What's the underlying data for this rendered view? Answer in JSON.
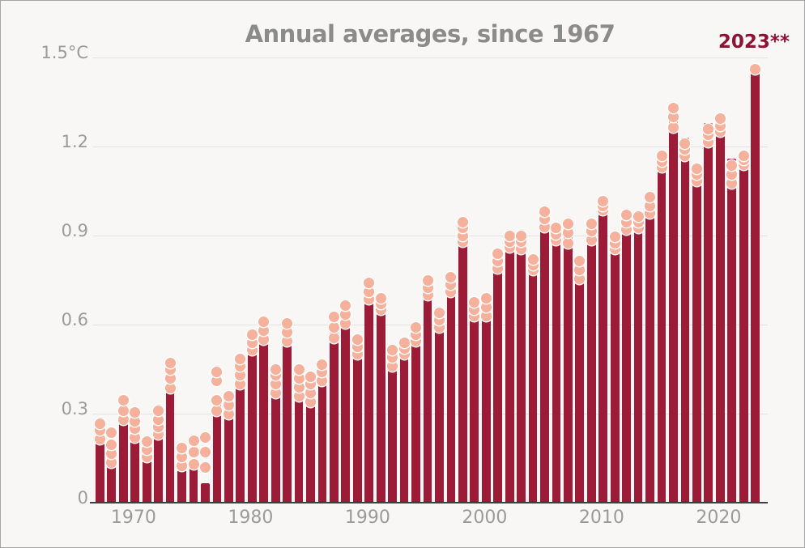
{
  "title": "Annual averages, since 1967",
  "highlight_label": "2023**",
  "colors": {
    "bar": "#9c1c38",
    "dot": "#f5b19b",
    "dot_ring": "#ffffff",
    "highlight_text": "#8c1333",
    "title_text": "#8b8b8b",
    "axis_text": "#9b9b9b",
    "background": "#f8f7f5",
    "gridline": "#e4e2e0",
    "axis_line": "#3e3e3e"
  },
  "chart_data": {
    "type": "bar",
    "title": "Annual averages, since 1967",
    "unit": "°C",
    "ylim": [
      0,
      1.5
    ],
    "yticks": [
      0,
      0.3,
      0.6,
      0.9,
      1.2,
      1.5
    ],
    "ytick_labels": [
      "0",
      "0.3",
      "0.6",
      "0.9",
      "1.2",
      "1.5°C"
    ],
    "xticks": [
      1970,
      1980,
      1990,
      2000,
      2010,
      2020
    ],
    "grid": "horizontal",
    "legend_position": "none",
    "annotation": "2023**",
    "annotation_year": 2023,
    "years": [
      1967,
      1968,
      1969,
      1970,
      1971,
      1972,
      1973,
      1974,
      1975,
      1976,
      1977,
      1978,
      1979,
      1980,
      1981,
      1982,
      1983,
      1984,
      1985,
      1986,
      1987,
      1988,
      1989,
      1990,
      1991,
      1992,
      1993,
      1994,
      1995,
      1996,
      1997,
      1998,
      1999,
      2000,
      2001,
      2002,
      2003,
      2004,
      2005,
      2006,
      2007,
      2008,
      2009,
      2010,
      2011,
      2012,
      2013,
      2014,
      2015,
      2016,
      2017,
      2018,
      2019,
      2020,
      2021,
      2022,
      2023
    ],
    "bar_values": [
      0.26,
      0.195,
      0.325,
      0.3,
      0.15,
      0.275,
      0.38,
      0.11,
      0.12,
      0.065,
      0.35,
      0.29,
      0.455,
      0.585,
      0.62,
      0.4,
      0.615,
      0.395,
      0.37,
      0.445,
      0.575,
      0.65,
      0.535,
      0.75,
      0.69,
      0.455,
      0.51,
      0.545,
      0.715,
      0.59,
      0.72,
      0.88,
      0.635,
      0.635,
      0.795,
      0.89,
      0.88,
      0.795,
      0.985,
      0.92,
      0.935,
      0.785,
      0.945,
      1.02,
      0.89,
      0.92,
      0.965,
      1.0,
      1.13,
      1.32,
      1.23,
      1.14,
      1.28,
      1.31,
      1.16,
      1.18,
      1.47
    ],
    "dots": [
      [
        0.215,
        0.245,
        0.265
      ],
      [
        0.135,
        0.165,
        0.195,
        0.235
      ],
      [
        0.28,
        0.31,
        0.345
      ],
      [
        0.22,
        0.25,
        0.275,
        0.305
      ],
      [
        0.155,
        0.18,
        0.205
      ],
      [
        0.23,
        0.255,
        0.28,
        0.31
      ],
      [
        0.385,
        0.42,
        0.45,
        0.47
      ],
      [
        0.125,
        0.155,
        0.185
      ],
      [
        0.13,
        0.17,
        0.21
      ],
      [
        0.12,
        0.17,
        0.22
      ],
      [
        0.31,
        0.345,
        0.41,
        0.44
      ],
      [
        0.3,
        0.33,
        0.36
      ],
      [
        0.4,
        0.43,
        0.46,
        0.485
      ],
      [
        0.515,
        0.54,
        0.565
      ],
      [
        0.55,
        0.58,
        0.61
      ],
      [
        0.37,
        0.4,
        0.43,
        0.45
      ],
      [
        0.545,
        0.575,
        0.605
      ],
      [
        0.36,
        0.39,
        0.42,
        0.45
      ],
      [
        0.34,
        0.37,
        0.4,
        0.425
      ],
      [
        0.41,
        0.44,
        0.465
      ],
      [
        0.555,
        0.59,
        0.625
      ],
      [
        0.605,
        0.635,
        0.665
      ],
      [
        0.5,
        0.525,
        0.55
      ],
      [
        0.685,
        0.71,
        0.74
      ],
      [
        0.65,
        0.67,
        0.69
      ],
      [
        0.46,
        0.49,
        0.515
      ],
      [
        0.5,
        0.52,
        0.54
      ],
      [
        0.545,
        0.565,
        0.59
      ],
      [
        0.7,
        0.725,
        0.75
      ],
      [
        0.59,
        0.615,
        0.64
      ],
      [
        0.71,
        0.735,
        0.76
      ],
      [
        0.88,
        0.9,
        0.925,
        0.945
      ],
      [
        0.63,
        0.65,
        0.675
      ],
      [
        0.63,
        0.66,
        0.69
      ],
      [
        0.79,
        0.815,
        0.84
      ],
      [
        0.86,
        0.88,
        0.9
      ],
      [
        0.855,
        0.88,
        0.9
      ],
      [
        0.785,
        0.8,
        0.82
      ],
      [
        0.93,
        0.955,
        0.98
      ],
      [
        0.885,
        0.905,
        0.925
      ],
      [
        0.875,
        0.91,
        0.94
      ],
      [
        0.755,
        0.785,
        0.815
      ],
      [
        0.885,
        0.915,
        0.94
      ],
      [
        0.985,
        1.0,
        1.015
      ],
      [
        0.855,
        0.875,
        0.895
      ],
      [
        0.92,
        0.945,
        0.97
      ],
      [
        0.925,
        0.945,
        0.965
      ],
      [
        0.975,
        1.0,
        1.03
      ],
      [
        1.13,
        1.15,
        1.17
      ],
      [
        1.265,
        1.3,
        1.33
      ],
      [
        1.17,
        1.19,
        1.21
      ],
      [
        1.085,
        1.105,
        1.125
      ],
      [
        1.215,
        1.24,
        1.26
      ],
      [
        1.25,
        1.27,
        1.295
      ],
      [
        1.075,
        1.105,
        1.135
      ],
      [
        1.14,
        1.155,
        1.17
      ],
      [
        1.46
      ]
    ]
  }
}
